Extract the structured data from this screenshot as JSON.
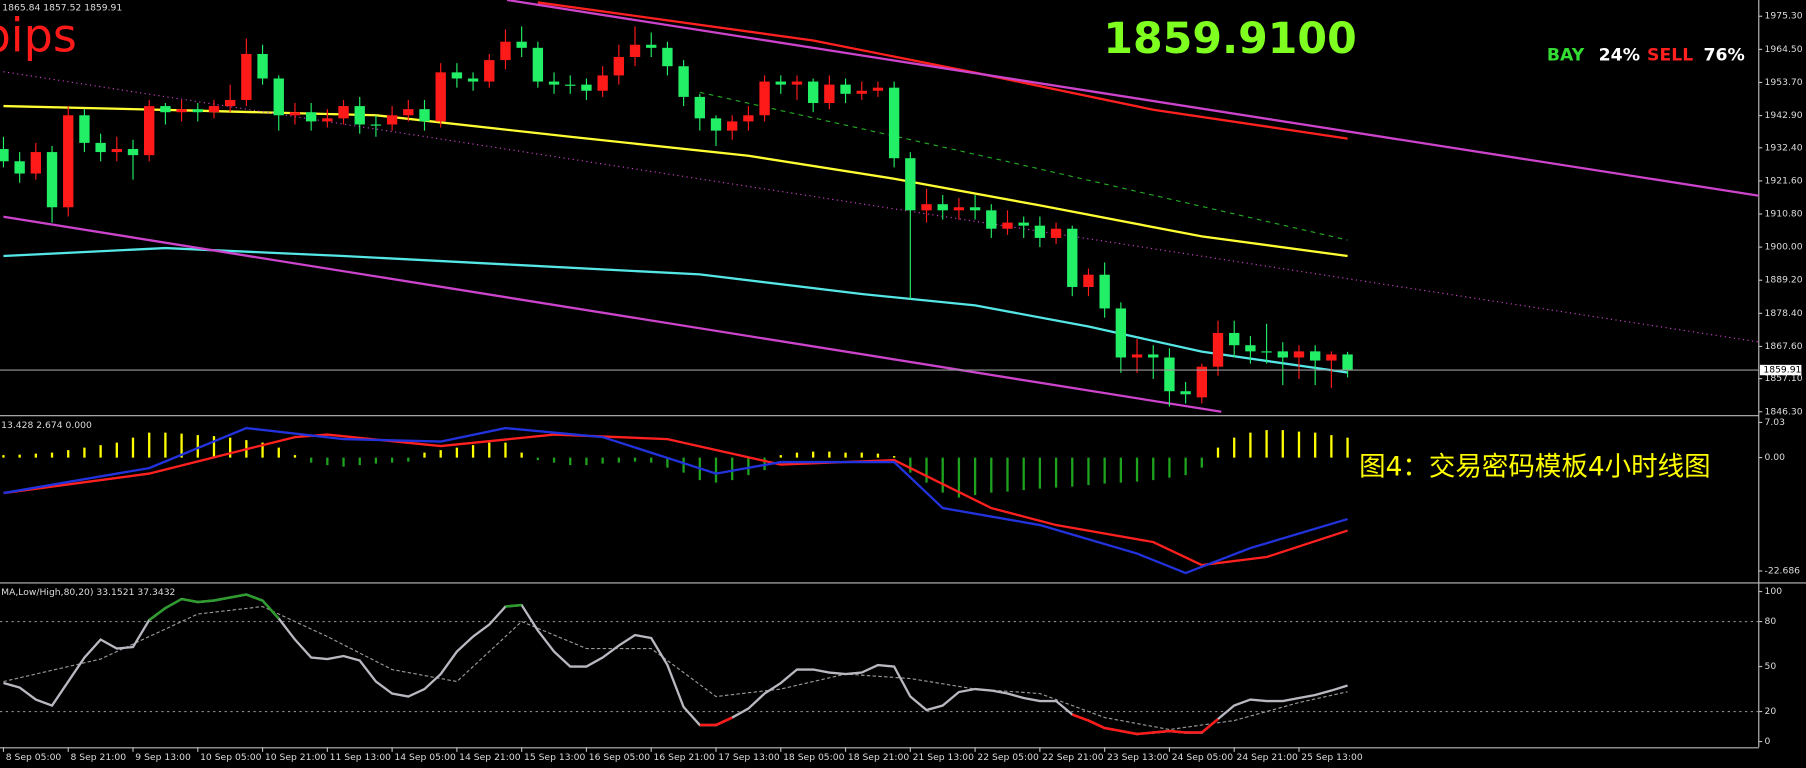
{
  "chart_data": [
    {
      "type": "candlestick",
      "header": "1865.84 1857.52 1859.91",
      "pips_text": "pips",
      "price_text": "1859.9100",
      "bay_label": "BAY",
      "bay_value": "24%",
      "sell_label": "SELL",
      "sell_value": "76%",
      "annotation": "图4：交易密码模板4小时线图",
      "up_color": "#ff1a1a",
      "down_color": "#22ee66",
      "ylim": [
        1845.2,
        1980.6
      ],
      "yticks": [
        {
          "value": 1975.3,
          "label": "1975.30"
        },
        {
          "value": 1964.5,
          "label": "1964.50"
        },
        {
          "value": 1953.7,
          "label": "1953.70"
        },
        {
          "value": 1942.9,
          "label": "1942.90"
        },
        {
          "value": 1932.4,
          "label": "1932.40"
        },
        {
          "value": 1921.6,
          "label": "1921.60"
        },
        {
          "value": 1910.8,
          "label": "1910.80"
        },
        {
          "value": 1900,
          "label": "1900.00"
        },
        {
          "value": 1889.2,
          "label": "1889.20"
        },
        {
          "value": 1878.4,
          "label": "1878.40"
        },
        {
          "value": 1867.6,
          "label": "1867.60"
        },
        {
          "value": 1857.1,
          "label": "1857.10"
        },
        {
          "value": 1846.3,
          "label": "1846.30"
        }
      ],
      "last_price": 1859.91,
      "categories": [
        "8 Sep 05:00",
        null,
        null,
        null,
        "8 Sep 21:00",
        null,
        null,
        null,
        "9 Sep 13:00",
        null,
        null,
        null,
        "10 Sep 05:00",
        null,
        null,
        null,
        "10 Sep 21:00",
        null,
        null,
        null,
        "11 Sep 13:00",
        null,
        null,
        null,
        "14 Sep 05:00",
        null,
        null,
        null,
        "14 Sep 21:00",
        null,
        null,
        null,
        "15 Sep 13:00",
        null,
        null,
        null,
        "16 Sep 05:00",
        null,
        null,
        null,
        "16 Sep 21:00",
        null,
        null,
        null,
        "17 Sep 13:00",
        null,
        null,
        null,
        "18 Sep 05:00",
        null,
        null,
        null,
        "18 Sep 21:00",
        null,
        null,
        null,
        "21 Sep 13:00",
        null,
        null,
        null,
        "22 Sep 05:00",
        null,
        null,
        null,
        "22 Sep 21:00",
        null,
        null,
        null,
        "23 Sep 13:00",
        null,
        null,
        null,
        "24 Sep 05:00",
        null,
        null,
        null,
        "24 Sep 21:00",
        null,
        null,
        null,
        "25 Sep 13:00",
        null,
        null,
        null
      ],
      "open": [
        1932,
        1928,
        1924,
        1931,
        1913,
        1943,
        1934,
        1931,
        1932,
        1930,
        1946,
        1944,
        1945,
        1944,
        1946,
        1948,
        1963,
        1955,
        1943,
        1944,
        1941,
        1942,
        1946,
        1940,
        1940,
        1943,
        1945,
        1941,
        1957,
        1955,
        1954,
        1961,
        1967,
        1965,
        1954,
        1953,
        1953,
        1951,
        1956,
        1962,
        1966,
        1965,
        1959,
        1949,
        1942,
        1938,
        1941,
        1943,
        1954,
        1953,
        1954,
        1947,
        1953,
        1950,
        1951,
        1952,
        1929,
        1912,
        1914,
        1912,
        1913,
        1912,
        1906,
        1908,
        1907,
        1903,
        1906,
        1887,
        1891,
        1880,
        1864,
        1865,
        1864,
        1853,
        1851,
        1861,
        1872,
        1868,
        1866,
        1866,
        1864,
        1866,
        1863,
        1865
      ],
      "high": [
        1936,
        1931,
        1934,
        1933,
        1946,
        1945,
        1937,
        1936,
        1935,
        1948,
        1947,
        1948,
        1947,
        1948,
        1953,
        1968,
        1966,
        1956,
        1947,
        1947,
        1945,
        1948,
        1949,
        1943,
        1946,
        1948,
        1948,
        1960,
        1960,
        1957,
        1963,
        1971,
        1972,
        1967,
        1957,
        1956,
        1955,
        1959,
        1966,
        1972,
        1970,
        1967,
        1961,
        1950,
        1943,
        1943,
        1946,
        1956,
        1956,
        1956,
        1955,
        1956,
        1955,
        1954,
        1954,
        1954,
        1931,
        1919,
        1917,
        1916,
        1917,
        1914,
        1912,
        1910,
        1910,
        1908,
        1907,
        1893,
        1895,
        1882,
        1870,
        1868,
        1867,
        1856,
        1862,
        1876,
        1876,
        1871,
        1875,
        1869,
        1868,
        1868,
        1866,
        1865.84
      ],
      "low": [
        1926,
        1921,
        1922,
        1908,
        1910,
        1931,
        1928,
        1928,
        1922,
        1928,
        1940,
        1941,
        1941,
        1942,
        1944,
        1946,
        1953,
        1938,
        1940,
        1938,
        1939,
        1940,
        1937,
        1936,
        1938,
        1941,
        1938,
        1939,
        1952,
        1951,
        1952,
        1958,
        1962,
        1952,
        1950,
        1950,
        1948,
        1949,
        1953,
        1959,
        1962,
        1956,
        1946,
        1938,
        1933,
        1935,
        1938,
        1941,
        1950,
        1948,
        1944,
        1945,
        1947,
        1948,
        1949,
        1926,
        1883,
        1908,
        1909,
        1909,
        1909,
        1903,
        1904,
        1903,
        1900,
        1901,
        1884,
        1884,
        1877,
        1859,
        1859,
        1857,
        1848,
        1849,
        1849,
        1858,
        1864,
        1862,
        1862,
        1855,
        1857,
        1855,
        1854,
        1857.52
      ],
      "close": [
        1928,
        1924,
        1931,
        1913,
        1943,
        1934,
        1931,
        1932,
        1930,
        1946,
        1944,
        1945,
        1944,
        1946,
        1948,
        1963,
        1955,
        1943,
        1944,
        1941,
        1942,
        1946,
        1940,
        1940,
        1943,
        1945,
        1941,
        1957,
        1955,
        1954,
        1961,
        1967,
        1965,
        1954,
        1953,
        1953,
        1951,
        1956,
        1962,
        1966,
        1965,
        1959,
        1949,
        1942,
        1938,
        1941,
        1943,
        1954,
        1953,
        1954,
        1947,
        1953,
        1950,
        1951,
        1952,
        1929,
        1912,
        1914,
        1912,
        1913,
        1912,
        1906,
        1908,
        1907,
        1903,
        1906,
        1887,
        1891,
        1880,
        1864,
        1865,
        1864,
        1853,
        1852,
        1861,
        1872,
        1868,
        1866,
        1866,
        1864,
        1866,
        1863,
        1865,
        1859.91
      ],
      "overlays": [
        {
          "color": "#ffff33",
          "style": "solid",
          "x": [
            0,
            12,
            23,
            35,
            46,
            55,
            64,
            74,
            83
          ],
          "values": [
            1946,
            1944.5,
            1943,
            1936,
            1929.8,
            1922.3,
            1913.6,
            1903.5,
            1897.1
          ]
        },
        {
          "color": "#ff2020",
          "style": "solid",
          "x": [
            33,
            50,
            60,
            71,
            83
          ],
          "values": [
            1979.8,
            1967.4,
            1956.9,
            1944.8,
            1935.4
          ]
        },
        {
          "color": "#55e6e6",
          "style": "solid",
          "x": [
            0,
            10,
            21,
            32,
            43,
            53,
            60,
            67,
            74,
            83
          ],
          "values": [
            1897.1,
            1899.7,
            1897.1,
            1894.1,
            1891.1,
            1884.7,
            1881,
            1874.1,
            1865.9,
            1859.1
          ]
        },
        {
          "color": "#22aa22",
          "style": "dashed",
          "x": [
            43,
            62,
            83
          ],
          "values": [
            1950.5,
            1927.9,
            1902.3
          ]
        },
        {
          "color": "#cc44cc",
          "style": "solid",
          "x": [
            31.1,
            108.6
          ],
          "values": [
            1980.6,
            1916.6
          ]
        },
        {
          "color": "#cc44cc",
          "style": "dotted",
          "x": [
            0,
            108.6
          ],
          "values": [
            1957.2,
            1868.9
          ]
        },
        {
          "color": "#cc44cc",
          "style": "solid",
          "x": [
            0,
            75.2
          ],
          "values": [
            1909.9,
            1846.3
          ]
        }
      ]
    },
    {
      "type": "macd",
      "header": "13.428 2.674 0.000",
      "ylim": [
        -24.5,
        7.8
      ],
      "yticks": [
        7.03,
        {
          "value": 0,
          "label": "0.00"
        },
        -22.686
      ],
      "positive_color": "#ffff00",
      "negative_color": "#1fa31f",
      "histogram": [
        0.5,
        0.6,
        0.8,
        1,
        1.5,
        2,
        2.5,
        3,
        4,
        5,
        5,
        4.8,
        4.5,
        4.3,
        4,
        3.5,
        3,
        2,
        0.5,
        -1,
        -1.5,
        -1.8,
        -1.5,
        -1.2,
        -1,
        -0.8,
        1,
        1.5,
        2,
        2.5,
        3,
        3,
        1,
        -0.5,
        -1,
        -1.5,
        -1.5,
        -1.2,
        -1,
        -0.8,
        -1,
        -2,
        -3,
        -4.5,
        -5,
        -4.5,
        -3.5,
        -2.5,
        0.5,
        1,
        1.2,
        1.2,
        1,
        1,
        0.8,
        0.3,
        -3,
        -5,
        -7,
        -8,
        -7.5,
        -7,
        -6.8,
        -6.5,
        -6.2,
        -6,
        -5.8,
        -5.5,
        -5.2,
        -5,
        -4.8,
        -4.5,
        -4,
        -3.5,
        -2,
        2,
        4,
        5,
        5.5,
        5.5,
        5.2,
        5,
        4.5,
        4
      ],
      "lines": [
        {
          "color": "#ff2020",
          "x": [
            0,
            9,
            18,
            20,
            27,
            34,
            41,
            48,
            55,
            61,
            65,
            71,
            74,
            78,
            83
          ],
          "values": [
            -7.1,
            -3.2,
            4.1,
            4.6,
            2.3,
            4.6,
            3.7,
            -1.4,
            -0.5,
            -10.1,
            -13.5,
            -16.9,
            -21.5,
            -19.9,
            -14.6
          ]
        },
        {
          "color": "#2233dd",
          "x": [
            0,
            9,
            15,
            21,
            27,
            31,
            37,
            44,
            48,
            55,
            58,
            64,
            70,
            73,
            77,
            83
          ],
          "values": [
            -7.1,
            -2.1,
            5.9,
            3.7,
            3.2,
            5.9,
            4.1,
            -3.2,
            -0.9,
            -0.9,
            -10.1,
            -13.5,
            -19.2,
            -23.1,
            -18.1,
            -12.3
          ]
        }
      ]
    },
    {
      "type": "stochastic",
      "header": "MA,Low/High,80,20) 33.1521 37.3432",
      "ylim": [
        -3.8,
        104.6
      ],
      "yticks": [
        100,
        80,
        50,
        20,
        0
      ],
      "levels": [
        80,
        20
      ],
      "color": "#b8b8c0",
      "upper_color": "#2e9b2e",
      "lower_color": "#ff1a1a",
      "values": [
        39,
        36,
        28,
        24,
        40,
        56,
        68,
        62,
        63,
        81,
        89,
        95,
        93,
        94,
        96,
        98,
        94,
        82,
        68,
        56,
        55,
        57,
        54,
        40,
        32,
        30,
        35,
        45,
        60,
        70,
        78,
        90,
        91,
        74,
        60,
        50,
        50,
        56,
        64,
        71,
        69,
        51,
        23,
        11,
        11,
        16,
        22,
        32,
        39,
        48,
        48,
        46,
        45,
        46,
        51,
        50,
        30,
        21,
        24,
        33,
        35,
        34,
        32,
        29,
        27,
        27,
        18,
        14,
        9,
        7,
        5,
        6,
        7,
        6,
        6,
        15,
        24,
        28,
        27,
        27,
        29,
        31,
        34,
        37.3432
      ],
      "signal": {
        "color": "#999999",
        "x": [
          0,
          6,
          12,
          16,
          20,
          24,
          28,
          32,
          36,
          40,
          44,
          48,
          52,
          56,
          60,
          64,
          68,
          72,
          76,
          80,
          83
        ],
        "values": [
          40,
          55,
          85,
          90,
          70,
          48,
          40,
          80,
          62,
          62,
          30,
          35,
          45,
          42,
          35,
          32,
          16,
          8,
          14,
          26,
          33.1521
        ]
      }
    }
  ]
}
